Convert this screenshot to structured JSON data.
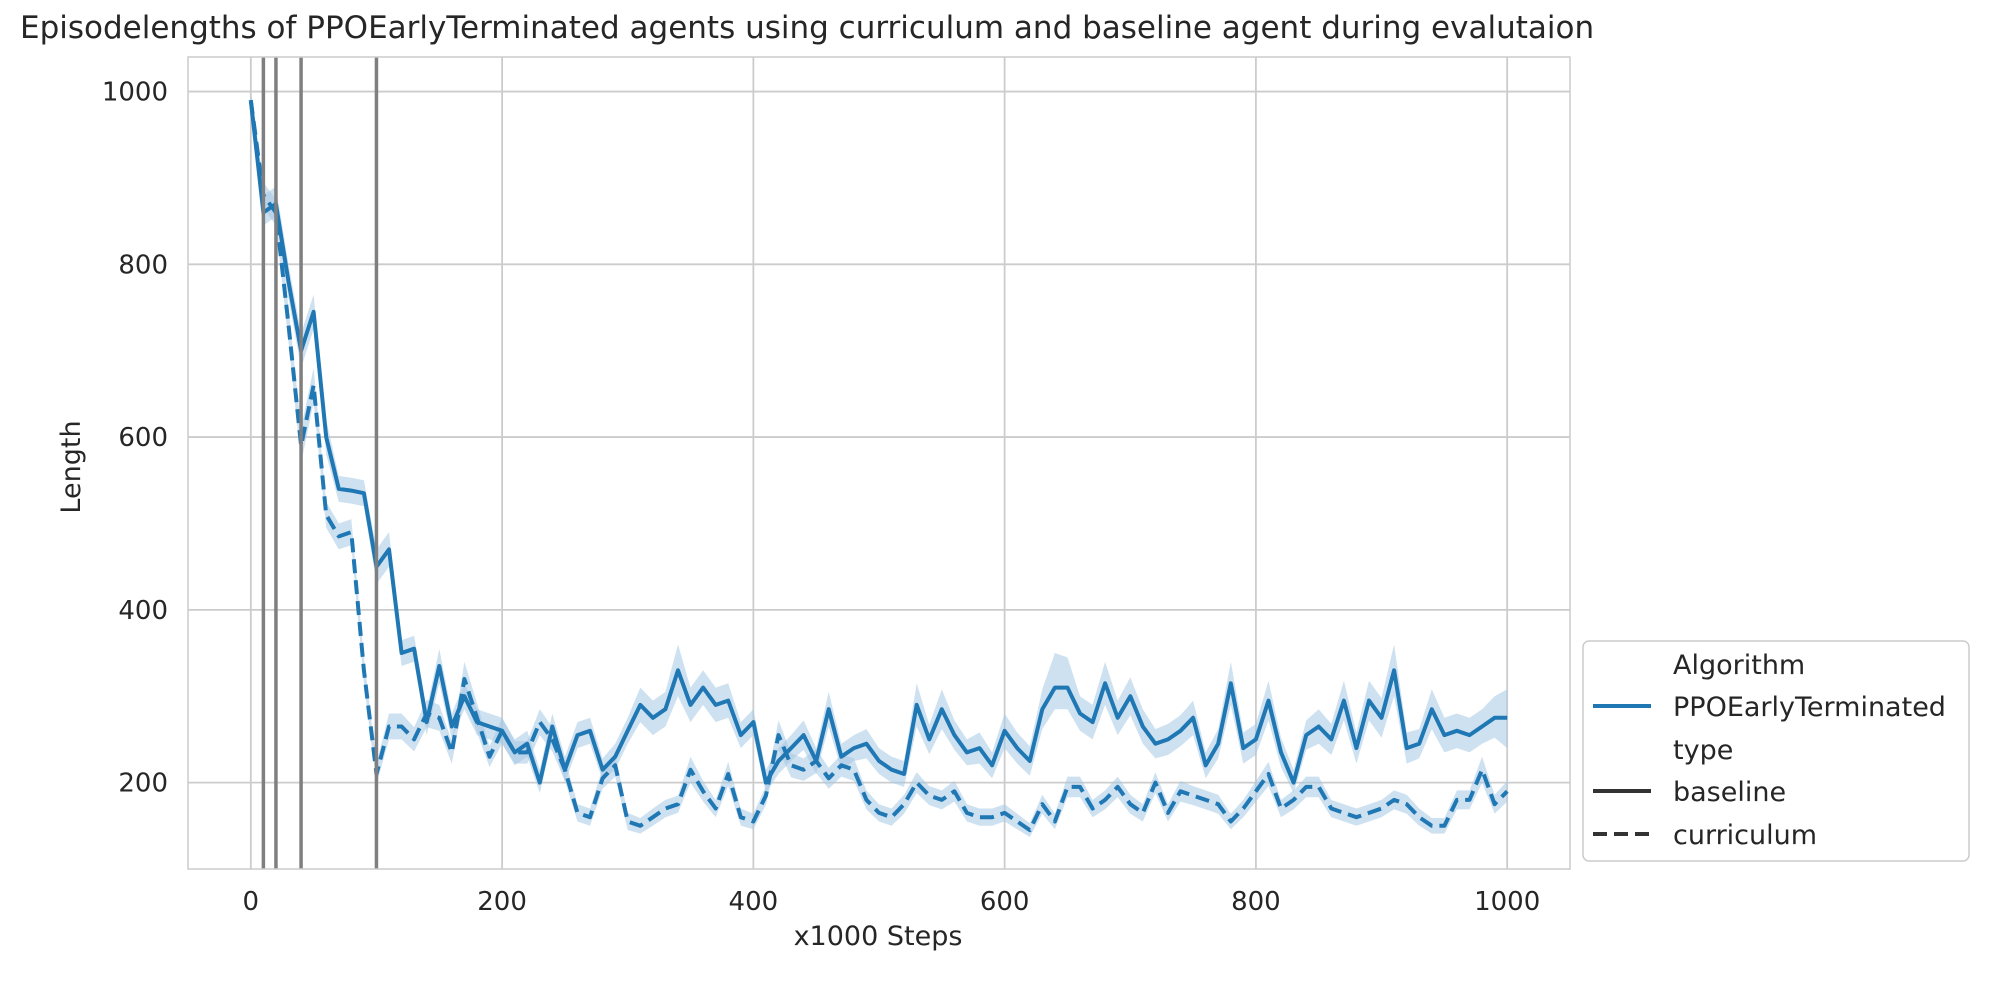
{
  "chart_data": {
    "type": "line",
    "title": "Episodelengths of PPOEarlyTerminated agents using curriculum and baseline agent during evalutaion",
    "xlabel": "x1000 Steps",
    "ylabel": "Length",
    "xlim": [
      -50,
      1050
    ],
    "ylim": [
      100,
      1040
    ],
    "xticks": [
      0,
      200,
      400,
      600,
      800,
      1000
    ],
    "yticks": [
      200,
      400,
      600,
      800,
      1000
    ],
    "grid": true,
    "legend_position": "right",
    "vlines": [
      10,
      20,
      40,
      100
    ],
    "colors": {
      "series": "#1f77b4",
      "band": "#a6c8e4",
      "vline": "#7f7f7f",
      "grid": "#cccccc"
    },
    "legend": {
      "title1": "Algorithm",
      "algorithm": "PPOEarlyTerminated",
      "title2": "type",
      "styles": [
        "baseline",
        "curriculum"
      ]
    },
    "x": [
      0,
      10,
      20,
      30,
      40,
      50,
      60,
      70,
      80,
      90,
      100,
      110,
      120,
      130,
      140,
      150,
      160,
      170,
      180,
      190,
      200,
      210,
      220,
      230,
      240,
      250,
      260,
      270,
      280,
      290,
      300,
      310,
      320,
      330,
      340,
      350,
      360,
      370,
      380,
      390,
      400,
      410,
      420,
      430,
      440,
      450,
      460,
      470,
      480,
      490,
      500,
      510,
      520,
      530,
      540,
      550,
      560,
      570,
      580,
      590,
      600,
      610,
      620,
      630,
      640,
      650,
      660,
      670,
      680,
      690,
      700,
      710,
      720,
      730,
      740,
      750,
      760,
      770,
      780,
      790,
      800,
      810,
      820,
      830,
      840,
      850,
      860,
      870,
      880,
      890,
      900,
      910,
      920,
      930,
      940,
      950,
      960,
      970,
      980,
      990,
      1000
    ],
    "series": [
      {
        "name": "baseline",
        "dash": "solid",
        "values": [
          990,
          860,
          870,
          780,
          700,
          745,
          600,
          540,
          538,
          535,
          450,
          470,
          350,
          355,
          270,
          335,
          265,
          300,
          270,
          265,
          260,
          235,
          245,
          200,
          265,
          215,
          255,
          260,
          215,
          230,
          260,
          290,
          275,
          285,
          330,
          290,
          310,
          290,
          295,
          255,
          270,
          200,
          225,
          240,
          255,
          225,
          285,
          230,
          240,
          245,
          225,
          215,
          210,
          290,
          250,
          285,
          255,
          235,
          240,
          220,
          260,
          240,
          225,
          285,
          310,
          310,
          280,
          270,
          315,
          275,
          300,
          265,
          245,
          250,
          260,
          275,
          220,
          245,
          315,
          240,
          250,
          295,
          235,
          200,
          255,
          265,
          250,
          295,
          240,
          295,
          275,
          330,
          240,
          245,
          285,
          255,
          260,
          255,
          265,
          275,
          275
        ],
        "lower": [
          980,
          845,
          855,
          760,
          680,
          725,
          580,
          525,
          523,
          520,
          430,
          450,
          335,
          340,
          255,
          315,
          250,
          285,
          255,
          250,
          245,
          220,
          230,
          188,
          250,
          200,
          240,
          245,
          203,
          215,
          245,
          270,
          255,
          265,
          300,
          270,
          290,
          270,
          275,
          240,
          255,
          188,
          210,
          225,
          238,
          210,
          265,
          215,
          225,
          228,
          210,
          200,
          195,
          265,
          233,
          262,
          238,
          220,
          222,
          205,
          240,
          222,
          208,
          262,
          285,
          285,
          260,
          250,
          290,
          255,
          278,
          245,
          228,
          232,
          242,
          255,
          205,
          228,
          290,
          222,
          232,
          272,
          218,
          188,
          238,
          245,
          232,
          272,
          222,
          272,
          252,
          300,
          222,
          228,
          262,
          235,
          240,
          235,
          245,
          252,
          240
        ],
        "upper": [
          1000,
          880,
          890,
          800,
          720,
          765,
          620,
          555,
          553,
          550,
          470,
          490,
          365,
          370,
          285,
          355,
          280,
          315,
          285,
          280,
          275,
          250,
          260,
          215,
          280,
          230,
          270,
          275,
          228,
          245,
          275,
          310,
          295,
          305,
          360,
          310,
          330,
          310,
          315,
          270,
          285,
          215,
          240,
          255,
          272,
          240,
          305,
          245,
          255,
          262,
          240,
          230,
          225,
          315,
          267,
          308,
          272,
          250,
          258,
          235,
          280,
          258,
          242,
          308,
          350,
          345,
          300,
          290,
          340,
          295,
          322,
          285,
          262,
          268,
          278,
          295,
          235,
          262,
          340,
          258,
          268,
          318,
          252,
          215,
          272,
          285,
          268,
          318,
          258,
          318,
          298,
          360,
          258,
          262,
          308,
          275,
          280,
          275,
          285,
          300,
          308
        ]
      },
      {
        "name": "curriculum",
        "dash": "dashed",
        "values": [
          990,
          880,
          860,
          730,
          590,
          660,
          510,
          485,
          490,
          330,
          210,
          265,
          265,
          250,
          280,
          275,
          235,
          320,
          275,
          230,
          260,
          235,
          235,
          270,
          250,
          215,
          165,
          160,
          205,
          220,
          155,
          150,
          160,
          170,
          175,
          215,
          190,
          170,
          210,
          160,
          155,
          185,
          255,
          220,
          215,
          225,
          205,
          220,
          215,
          180,
          165,
          160,
          175,
          200,
          185,
          180,
          190,
          165,
          160,
          160,
          165,
          155,
          145,
          175,
          155,
          195,
          195,
          170,
          180,
          195,
          175,
          165,
          200,
          165,
          190,
          185,
          180,
          175,
          155,
          170,
          190,
          210,
          170,
          180,
          195,
          195,
          170,
          165,
          160,
          165,
          170,
          180,
          175,
          160,
          150,
          150,
          180,
          180,
          215,
          175,
          190
        ],
        "lower": [
          980,
          865,
          845,
          710,
          570,
          640,
          495,
          470,
          475,
          315,
          198,
          250,
          250,
          236,
          264,
          260,
          222,
          300,
          258,
          218,
          245,
          222,
          222,
          255,
          236,
          202,
          155,
          150,
          193,
          207,
          145,
          141,
          150,
          160,
          165,
          200,
          178,
          160,
          196,
          150,
          146,
          174,
          238,
          206,
          202,
          211,
          193,
          207,
          202,
          169,
          155,
          150,
          164,
          188,
          174,
          169,
          178,
          155,
          150,
          150,
          155,
          146,
          137,
          164,
          146,
          183,
          183,
          160,
          169,
          183,
          164,
          155,
          188,
          155,
          178,
          174,
          169,
          164,
          146,
          160,
          178,
          196,
          160,
          169,
          183,
          183,
          160,
          155,
          150,
          155,
          160,
          169,
          164,
          150,
          141,
          141,
          169,
          169,
          200,
          164,
          178
        ],
        "upper": [
          1000,
          895,
          875,
          750,
          610,
          680,
          525,
          500,
          505,
          345,
          222,
          280,
          280,
          264,
          296,
          290,
          248,
          340,
          292,
          242,
          275,
          248,
          248,
          285,
          264,
          228,
          175,
          170,
          217,
          233,
          165,
          159,
          170,
          180,
          185,
          230,
          202,
          180,
          224,
          170,
          164,
          196,
          272,
          234,
          228,
          239,
          217,
          233,
          228,
          191,
          175,
          170,
          186,
          212,
          196,
          191,
          202,
          175,
          170,
          170,
          175,
          164,
          153,
          186,
          164,
          207,
          207,
          180,
          191,
          207,
          186,
          175,
          212,
          175,
          202,
          196,
          191,
          186,
          164,
          180,
          202,
          224,
          180,
          191,
          207,
          207,
          180,
          175,
          170,
          175,
          180,
          191,
          186,
          170,
          159,
          159,
          191,
          191,
          230,
          186,
          202
        ]
      }
    ]
  }
}
